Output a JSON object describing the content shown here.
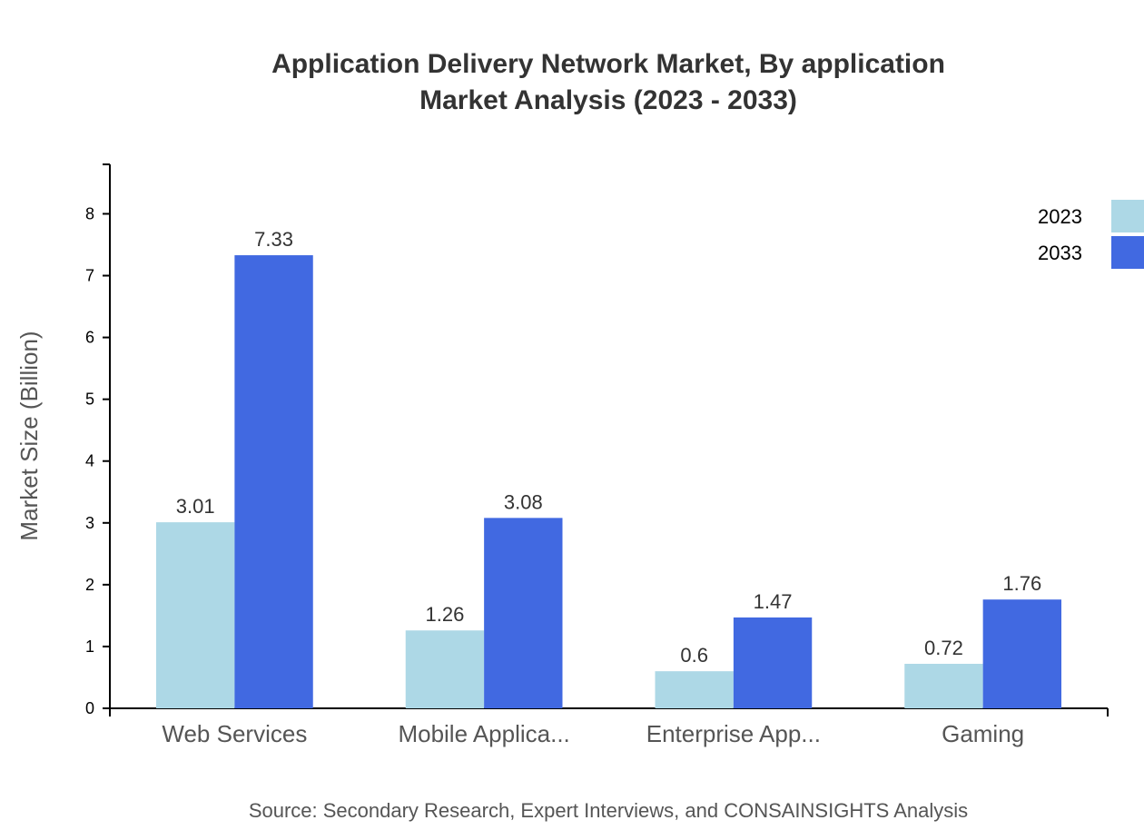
{
  "chart_data": {
    "type": "bar",
    "title": "Application Delivery Network Market, By application",
    "subtitle": "Market Analysis (2023 - 2033)",
    "xlabel": "",
    "ylabel": "Market Size (Billion)",
    "categories": [
      "Web Services",
      "Mobile Applica...",
      "Enterprise App...",
      "Gaming"
    ],
    "series": [
      {
        "name": "2023",
        "color": "#add8e6",
        "values": [
          3.01,
          1.26,
          0.6,
          0.72
        ]
      },
      {
        "name": "2033",
        "color": "#4169e1",
        "values": [
          7.33,
          3.08,
          1.47,
          1.76
        ]
      }
    ],
    "ylim": [
      0,
      8.8
    ],
    "yticks": [
      0,
      1,
      2,
      3,
      4,
      5,
      6,
      7,
      8
    ],
    "grid": false,
    "legend": "top-right",
    "source": "Source: Secondary Research, Expert Interviews, and CONSAINSIGHTS Analysis"
  }
}
